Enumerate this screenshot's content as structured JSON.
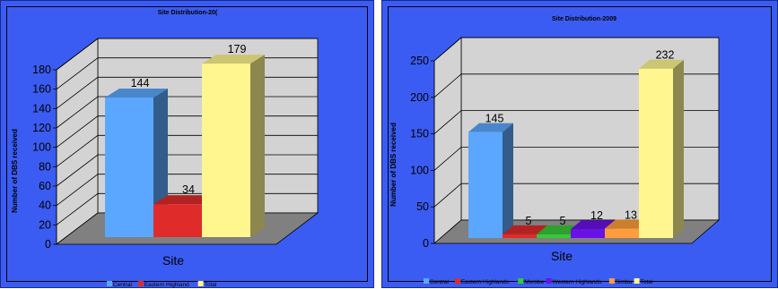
{
  "colors": {
    "panel_bg": "#3b5cf2",
    "wall": "#d3d3d3",
    "floor": "#808080",
    "series_colors": {
      "Central": "#5ba7ff",
      "Eastern Highlands": "#e02b2b",
      "Eastern Highland": "#e02b2b",
      "Morobe": "#38c838",
      "Western Highlands": "#6a10e8",
      "Simbu": "#ff9d3c",
      "Total": "#fff68f"
    }
  },
  "chart_data": [
    {
      "type": "bar",
      "title": "Site Distribution-20(",
      "xlabel": "Site",
      "ylabel": "Number of DBS received",
      "ylim": [
        0,
        180
      ],
      "yticks": [
        0,
        20,
        40,
        60,
        80,
        100,
        120,
        140,
        160,
        180
      ],
      "series": [
        {
          "name": "Central",
          "values": [
            144
          ]
        },
        {
          "name": "Eastern Highland",
          "values": [
            34
          ]
        },
        {
          "name": "Total",
          "values": [
            179
          ]
        }
      ],
      "data_labels": [
        "144",
        "34",
        "179"
      ],
      "legend": [
        "Central",
        "Eastern Highland",
        "Total"
      ],
      "legend_position": "bottom",
      "grid": true
    },
    {
      "type": "bar",
      "title": "Site Distribution-2009",
      "xlabel": "Site",
      "ylabel": "Number of DBS received",
      "ylim": [
        0,
        250
      ],
      "yticks": [
        0,
        50,
        100,
        150,
        200,
        250
      ],
      "series": [
        {
          "name": "Central",
          "values": [
            145
          ]
        },
        {
          "name": "Eastern Highlands",
          "values": [
            5
          ]
        },
        {
          "name": "Morobe",
          "values": [
            5
          ]
        },
        {
          "name": "Western Highlands",
          "values": [
            12
          ]
        },
        {
          "name": "Simbu",
          "values": [
            13
          ]
        },
        {
          "name": "Total",
          "values": [
            232
          ]
        }
      ],
      "data_labels": [
        "145",
        "5",
        "5",
        "12",
        "13",
        "232"
      ],
      "legend": [
        "Central",
        "Eastern Highlands",
        "Morobe",
        "Western Highlands",
        "Simbu",
        "Total"
      ],
      "legend_position": "bottom",
      "grid": true
    }
  ]
}
